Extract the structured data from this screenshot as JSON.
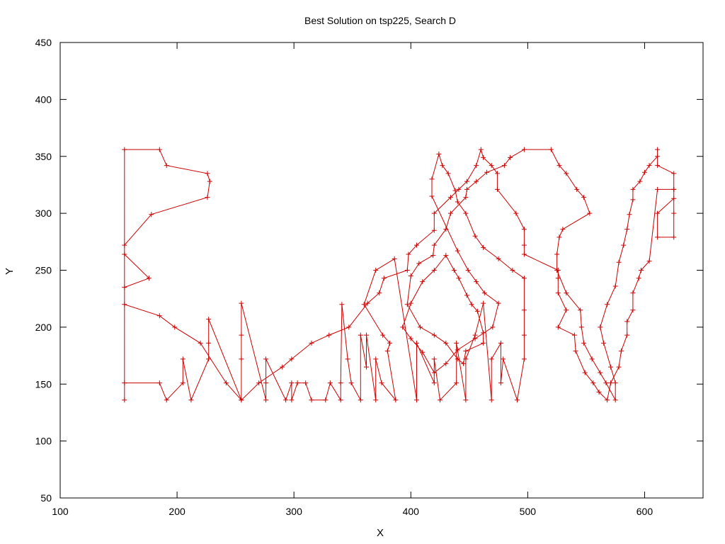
{
  "chart_data": {
    "type": "line",
    "title": "Best Solution on tsp225, Search D",
    "xlabel": "X",
    "ylabel": "Y",
    "xlim": [
      100,
      650
    ],
    "ylim": [
      50,
      450
    ],
    "xticks": [
      "100",
      "200",
      "300",
      "400",
      "500",
      "600"
    ],
    "yticks": [
      "50",
      "100",
      "150",
      "200",
      "250",
      "300",
      "350",
      "400",
      "450"
    ],
    "grid": false,
    "legend": "none",
    "series": [
      {
        "color": "#cc0000",
        "marker": "plus",
        "closed": true,
        "x": [
          155,
          155,
          185,
          191,
          205,
          205,
          212,
          227,
          227,
          227,
          255,
          255,
          255,
          255,
          276,
          276,
          276,
          293,
          298,
          298,
          303,
          310,
          315,
          327,
          331,
          340,
          340,
          341,
          346,
          349,
          357,
          357,
          362,
          362,
          370,
          370,
          375,
          387,
          380,
          382,
          376,
          360,
          370,
          386,
          405,
          405,
          420,
          420,
          425,
          439,
          439,
          447,
          447,
          455,
          462,
          469,
          469,
          477,
          477,
          479,
          491,
          497,
          497,
          497,
          497,
          487,
          475,
          462,
          455,
          447,
          440,
          438,
          432,
          427,
          424,
          418,
          418,
          440,
          449,
          456,
          463,
          475,
          470,
          455,
          440,
          430,
          420,
          410,
          400,
          393,
          400,
          410,
          420,
          430,
          437,
          441,
          448,
          452,
          457,
          462,
          462,
          447,
          445,
          440,
          430,
          420,
          408,
          397,
          400,
          407,
          419,
          420,
          430,
          434,
          447,
          448,
          456,
          465,
          480,
          485,
          497,
          520,
          527,
          533,
          542,
          548,
          553,
          530,
          527,
          525,
          525,
          533,
          545,
          546,
          548,
          555,
          562,
          567,
          575,
          575,
          571,
          565,
          562,
          568,
          575,
          578,
          582,
          585,
          587,
          590,
          590,
          596,
          600,
          604,
          611,
          611,
          611,
          625,
          625,
          625,
          611,
          611,
          625,
          625,
          625,
          611,
          604,
          597,
          595,
          590,
          590,
          585,
          585,
          580,
          578,
          571,
          568,
          561,
          556,
          549,
          541,
          540,
          526,
          533,
          526,
          526,
          526,
          497,
          497,
          497,
          490,
          474,
          474,
          469,
          462,
          460,
          456,
          448,
          441,
          434,
          420,
          420,
          405,
          398,
          397,
          377,
          373,
          363,
          347,
          330,
          315,
          298,
          290,
          270,
          255,
          242,
          220,
          198,
          185,
          155,
          155,
          176,
          155,
          155,
          178,
          226,
          228,
          226,
          191,
          185,
          155
        ],
        "y": [
          136,
          151,
          151,
          136,
          151,
          172,
          136,
          172,
          186,
          207,
          136,
          172,
          193,
          221,
          136,
          151,
          172,
          136,
          151,
          136,
          151,
          151,
          136,
          136,
          151,
          136,
          151,
          220,
          172,
          151,
          136,
          193,
          165,
          193,
          136,
          172,
          151,
          136,
          179,
          186,
          193,
          220,
          250,
          260,
          136,
          186,
          151,
          172,
          136,
          151,
          186,
          136,
          172,
          193,
          221,
          136,
          172,
          186,
          151,
          172,
          136,
          172,
          193,
          215,
          243,
          250,
          260,
          270,
          280,
          300,
          310,
          320,
          335,
          342,
          352,
          330,
          315,
          267,
          250,
          240,
          230,
          221,
          200,
          190,
          180,
          168,
          160,
          178,
          190,
          200,
          221,
          240,
          250,
          263,
          250,
          243,
          228,
          220,
          214,
          195,
          186,
          179,
          168,
          172,
          186,
          193,
          200,
          220,
          245,
          256,
          263,
          272,
          286,
          300,
          314,
          321,
          328,
          336,
          342,
          349,
          356,
          356,
          342,
          335,
          321,
          314,
          300,
          286,
          279,
          264,
          250,
          230,
          215,
          200,
          186,
          172,
          160,
          151,
          136,
          151,
          165,
          186,
          200,
          220,
          236,
          257,
          272,
          286,
          299,
          312,
          321,
          328,
          336,
          342,
          350,
          356,
          342,
          335,
          321,
          313,
          300,
          279,
          279,
          300,
          321,
          321,
          258,
          250,
          243,
          230,
          215,
          205,
          193,
          179,
          165,
          151,
          136,
          143,
          151,
          160,
          179,
          193,
          200,
          215,
          230,
          243,
          250,
          264,
          272,
          286,
          300,
          321,
          335,
          342,
          349,
          356,
          342,
          328,
          321,
          314,
          300,
          285,
          272,
          264,
          250,
          243,
          230,
          221,
          200,
          193,
          186,
          172,
          165,
          151,
          136,
          151,
          186,
          200,
          210,
          220,
          235,
          243,
          264,
          272,
          299,
          314,
          328,
          335,
          342,
          356,
          356
        ]
      }
    ]
  }
}
